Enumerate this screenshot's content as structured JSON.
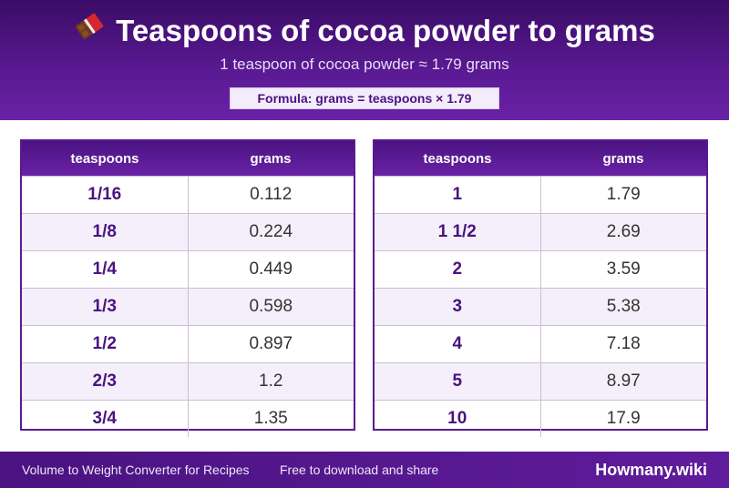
{
  "header": {
    "icon": "chocolate-bar-icon",
    "title": "Teaspoons of cocoa powder to grams",
    "subtitle": "1 teaspoon of cocoa powder ≈ 1.79 grams",
    "formula": "Formula: grams = teaspoons × 1.79"
  },
  "tables": {
    "left": {
      "col_tsp": "teaspoons",
      "col_grams": "grams",
      "rows": [
        {
          "tsp": "1/16",
          "grams": "0.112"
        },
        {
          "tsp": "1/8",
          "grams": "0.224"
        },
        {
          "tsp": "1/4",
          "grams": "0.449"
        },
        {
          "tsp": "1/3",
          "grams": "0.598"
        },
        {
          "tsp": "1/2",
          "grams": "0.897"
        },
        {
          "tsp": "2/3",
          "grams": "1.2"
        },
        {
          "tsp": "3/4",
          "grams": "1.35"
        }
      ]
    },
    "right": {
      "col_tsp": "teaspoons",
      "col_grams": "grams",
      "rows": [
        {
          "tsp": "1",
          "grams": "1.79"
        },
        {
          "tsp": "1 1/2",
          "grams": "2.69"
        },
        {
          "tsp": "2",
          "grams": "3.59"
        },
        {
          "tsp": "3",
          "grams": "5.38"
        },
        {
          "tsp": "4",
          "grams": "7.18"
        },
        {
          "tsp": "5",
          "grams": "8.97"
        },
        {
          "tsp": "10",
          "grams": "17.9"
        }
      ]
    }
  },
  "footer": {
    "left_text": "Volume to Weight Converter for Recipes",
    "mid_text": "Free to download and share",
    "brand": "Howmany.wiki"
  },
  "colors": {
    "header_purple": "#5a1a93",
    "accent_purple": "#4a1380",
    "row_alt": "#f4effb",
    "formula_bg": "#f3ecfb"
  }
}
